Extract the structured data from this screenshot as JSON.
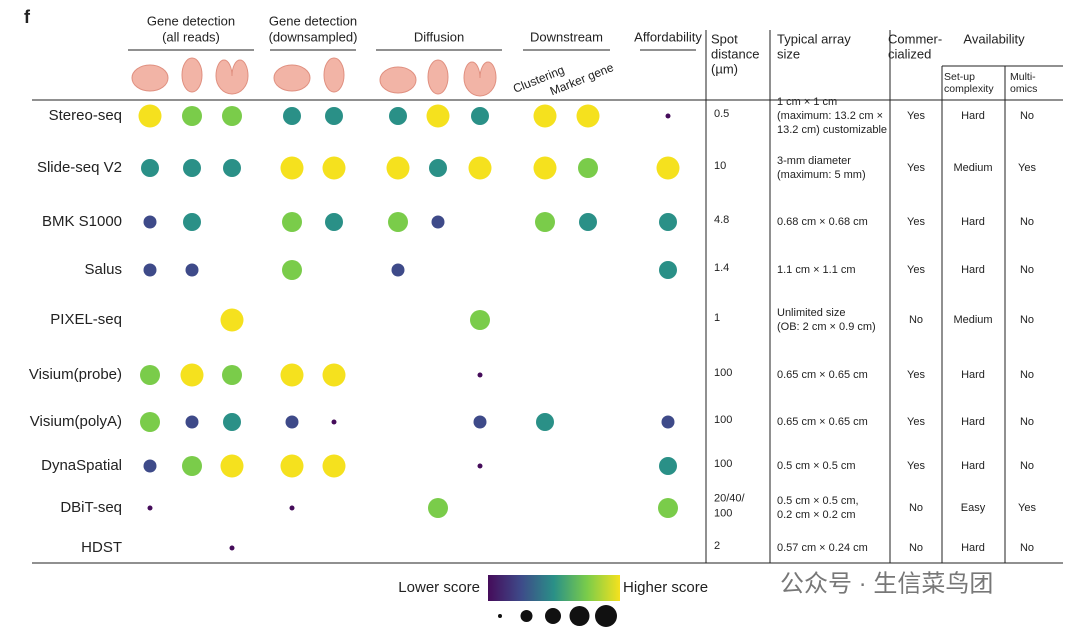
{
  "panel_label": "f",
  "groups": [
    {
      "label": [
        "Gene detection",
        "(all reads)"
      ],
      "columns": [
        0,
        1,
        2
      ]
    },
    {
      "label": [
        "Gene detection",
        "(downsampled)"
      ],
      "columns": [
        3,
        4
      ]
    },
    {
      "label": [
        "Diffusion"
      ],
      "columns": [
        5,
        6,
        7
      ]
    },
    {
      "label": [
        "Downstream"
      ],
      "columns": [
        8,
        9
      ]
    },
    {
      "label": [
        "Affordability"
      ],
      "columns": [
        10
      ]
    }
  ],
  "sub_labels": [
    "Clustering",
    "Marker gene"
  ],
  "table_headers": {
    "spot": [
      "Spot",
      "distance",
      "(µm)"
    ],
    "array": [
      "Typical array",
      "size"
    ],
    "commercial": [
      "Commer-",
      "cialized"
    ],
    "availability": "Availability",
    "setup": [
      "Set-up",
      "complexity"
    ],
    "multi": [
      "Multi-",
      "omics"
    ]
  },
  "palette": [
    "#450c5a",
    "#3e4a89",
    "#2a9087",
    "#7acc4a",
    "#f5e11e"
  ],
  "rows": [
    {
      "method": "Stereo-seq",
      "scores": [
        5,
        4,
        4,
        3,
        3,
        3,
        5,
        3,
        5,
        5,
        1
      ],
      "spot": [
        "0.5"
      ],
      "array": [
        "1 cm × 1 cm",
        "(maximum: 13.2 cm ×",
        "13.2 cm) customizable"
      ],
      "commercial": "Yes",
      "setup": "Hard",
      "multi": "No"
    },
    {
      "method": "Slide-seq V2",
      "scores": [
        3,
        3,
        3,
        5,
        5,
        5,
        3,
        5,
        5,
        4,
        5
      ],
      "spot": [
        "10"
      ],
      "array": [
        "3-mm diameter",
        "(maximum: 5 mm)"
      ],
      "commercial": "Yes",
      "setup": "Medium",
      "multi": "Yes"
    },
    {
      "method": "BMK S1000",
      "scores": [
        2,
        3,
        null,
        4,
        3,
        4,
        2,
        null,
        4,
        3,
        3
      ],
      "spot": [
        "4.8"
      ],
      "array": [
        "0.68 cm × 0.68 cm"
      ],
      "commercial": "Yes",
      "setup": "Hard",
      "multi": "No"
    },
    {
      "method": "Salus",
      "scores": [
        2,
        2,
        null,
        4,
        null,
        2,
        null,
        null,
        null,
        null,
        3
      ],
      "spot": [
        "1.4"
      ],
      "array": [
        "1.1 cm × 1.1 cm"
      ],
      "commercial": "Yes",
      "setup": "Hard",
      "multi": "No"
    },
    {
      "method": "PIXEL-seq",
      "scores": [
        null,
        null,
        5,
        null,
        null,
        null,
        null,
        4,
        null,
        null,
        null
      ],
      "spot": [
        "1"
      ],
      "array": [
        "Unlimited size",
        "(OB: 2 cm × 0.9 cm)"
      ],
      "commercial": "No",
      "setup": "Medium",
      "multi": "No"
    },
    {
      "method": "Visium(probe)",
      "scores": [
        4,
        5,
        4,
        5,
        5,
        null,
        null,
        1,
        null,
        null,
        null
      ],
      "spot": [
        "100"
      ],
      "array": [
        "0.65 cm × 0.65 cm"
      ],
      "commercial": "Yes",
      "setup": "Hard",
      "multi": "No"
    },
    {
      "method": "Visium(polyA)",
      "scores": [
        4,
        2,
        3,
        2,
        1,
        null,
        null,
        2,
        3,
        null,
        2
      ],
      "spot": [
        "100"
      ],
      "array": [
        "0.65 cm × 0.65 cm"
      ],
      "commercial": "Yes",
      "setup": "Hard",
      "multi": "No"
    },
    {
      "method": "DynaSpatial",
      "scores": [
        2,
        4,
        5,
        5,
        5,
        null,
        null,
        1,
        null,
        null,
        3
      ],
      "spot": [
        "100"
      ],
      "array": [
        "0.5 cm × 0.5 cm"
      ],
      "commercial": "Yes",
      "setup": "Hard",
      "multi": "No"
    },
    {
      "method": "DBiT-seq",
      "scores": [
        1,
        null,
        null,
        1,
        null,
        null,
        4,
        null,
        null,
        null,
        4
      ],
      "spot": [
        "20/40/",
        "100"
      ],
      "array": [
        "0.5 cm × 0.5 cm,",
        "0.2 cm × 0.2 cm"
      ],
      "commercial": "No",
      "setup": "Easy",
      "multi": "Yes"
    },
    {
      "method": "HDST",
      "scores": [
        null,
        null,
        1,
        null,
        null,
        null,
        null,
        null,
        null,
        null,
        null
      ],
      "spot": [
        "2"
      ],
      "array": [
        "0.57 cm × 0.24 cm"
      ],
      "commercial": "No",
      "setup": "Hard",
      "multi": "No"
    }
  ],
  "legend": {
    "low": "Lower score",
    "high": "Higher score"
  },
  "watermark": "公众号 · 生信菜鸟团"
}
